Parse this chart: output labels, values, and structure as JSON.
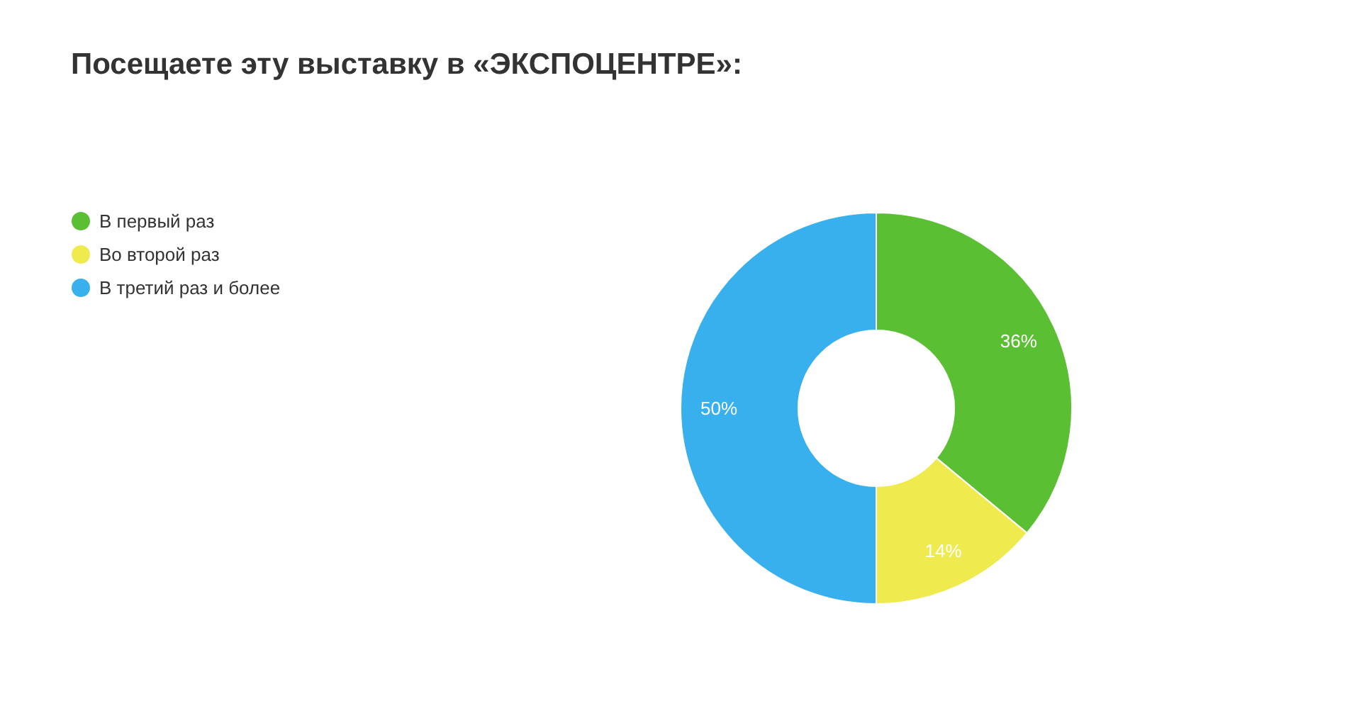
{
  "chart_data": {
    "type": "donut",
    "title": "Посещаете эту выставку в «ЭКСПОЦЕНТРЕ»:",
    "categories": [
      "В первый раз",
      "Во второй раз",
      "В третий раз и более"
    ],
    "values": [
      36,
      14,
      50
    ],
    "colors": [
      "#5bbf33",
      "#efeb4f",
      "#38b0ee"
    ],
    "value_labels": [
      "36%",
      "14%",
      "50%"
    ],
    "legend": "left"
  }
}
